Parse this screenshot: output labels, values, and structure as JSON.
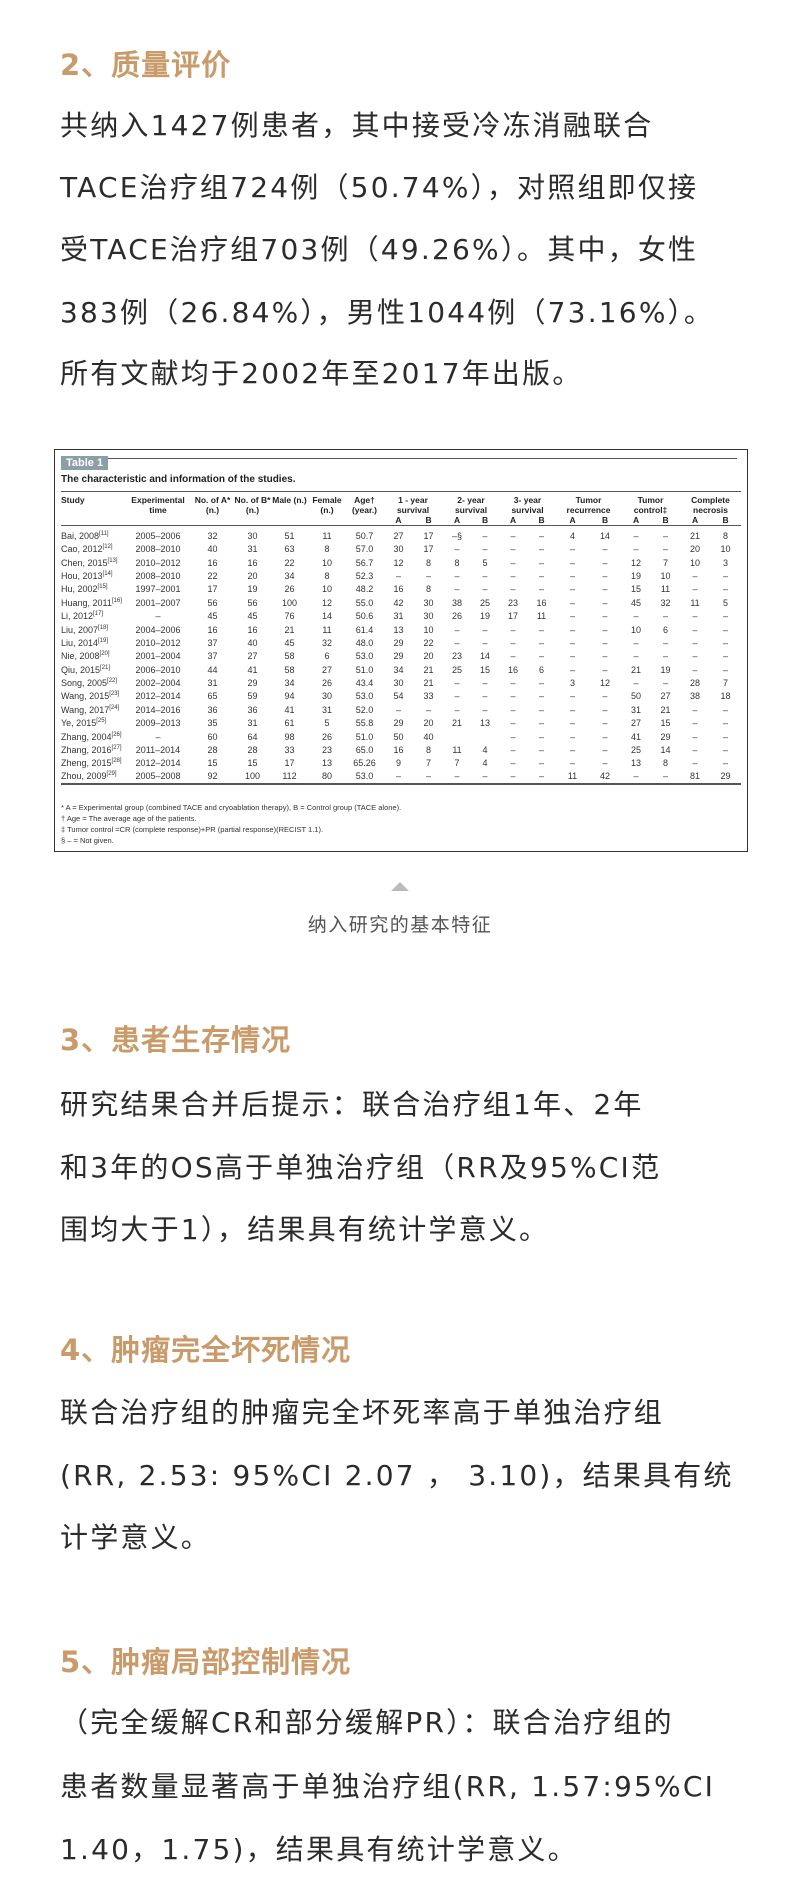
{
  "section2": {
    "heading": "2、质量评价",
    "lines": [
      "共纳入1427例患者，其中接受冷冻消融联合",
      "TACE治疗组724例（50.74%），对照组即仅接",
      "受TACE治疗组703例（49.26%）。其中，女性",
      "383例（26.84%），男性1044例（73.16%）。",
      "所有文献均于2002年至2017年出版。"
    ]
  },
  "table": {
    "label": "Table 1",
    "title": "The characteristic and information of the studies.",
    "headers": [
      "Study",
      "Experimental time",
      "No. of A* (n.)",
      "No. of B* (n.)",
      "Male (n.)",
      "Female (n.)",
      "Age† (year.)",
      "1 - year survival",
      "2- year survival",
      "3- year survival",
      "Tumor recurrence",
      "Tumor control‡",
      "Complete necrosis"
    ],
    "sub": [
      "A",
      "B"
    ],
    "rows": [
      [
        "Bai, 2008",
        "11",
        "2005–2006",
        "32",
        "30",
        "51",
        "11",
        "50.7",
        "27",
        "17",
        "–§",
        "–",
        "–",
        "–",
        "4",
        "14",
        "–",
        "–",
        "21",
        "8"
      ],
      [
        "Cao, 2012",
        "12",
        "2008–2010",
        "40",
        "31",
        "63",
        "8",
        "57.0",
        "30",
        "17",
        "–",
        "–",
        "–",
        "–",
        "–",
        "–",
        "–",
        "–",
        "20",
        "10"
      ],
      [
        "Chen, 2015",
        "13",
        "2010–2012",
        "16",
        "16",
        "22",
        "10",
        "56.7",
        "12",
        "8",
        "8",
        "5",
        "–",
        "–",
        "–",
        "–",
        "12",
        "7",
        "10",
        "3"
      ],
      [
        "Hou, 2013",
        "14",
        "2008–2010",
        "22",
        "20",
        "34",
        "8",
        "52.3",
        "–",
        "–",
        "–",
        "–",
        "–",
        "–",
        "–",
        "–",
        "19",
        "10",
        "–",
        "–"
      ],
      [
        "Hu, 2002",
        "15",
        "1997–2001",
        "17",
        "19",
        "26",
        "10",
        "48.2",
        "16",
        "8",
        "–",
        "–",
        "–",
        "–",
        "–",
        "–",
        "15",
        "11",
        "–",
        "–"
      ],
      [
        "Huang, 2011",
        "16",
        "2001–2007",
        "56",
        "56",
        "100",
        "12",
        "55.0",
        "42",
        "30",
        "38",
        "25",
        "23",
        "16",
        "–",
        "–",
        "45",
        "32",
        "11",
        "5"
      ],
      [
        "Li, 2012",
        "17",
        "–",
        "45",
        "45",
        "76",
        "14",
        "50.6",
        "31",
        "30",
        "26",
        "19",
        "17",
        "11",
        "–",
        "–",
        "–",
        "–",
        "–",
        "–"
      ],
      [
        "Liu, 2007",
        "18",
        "2004–2006",
        "16",
        "16",
        "21",
        "11",
        "61.4",
        "13",
        "10",
        "–",
        "–",
        "–",
        "–",
        "–",
        "–",
        "10",
        "6",
        "–",
        "–"
      ],
      [
        "Liu, 2014",
        "19",
        "2010–2012",
        "37",
        "40",
        "45",
        "32",
        "48.0",
        "29",
        "22",
        "–",
        "–",
        "–",
        "–",
        "–",
        "–",
        "–",
        "–",
        "–",
        "–"
      ],
      [
        "Nie, 2008",
        "20",
        "2001–2004",
        "37",
        "27",
        "58",
        "6",
        "53.0",
        "29",
        "20",
        "23",
        "14",
        "–",
        "–",
        "–",
        "–",
        "–",
        "–",
        "–",
        "–"
      ],
      [
        "Qiu, 2015",
        "21",
        "2006–2010",
        "44",
        "41",
        "58",
        "27",
        "51.0",
        "34",
        "21",
        "25",
        "15",
        "16",
        "6",
        "–",
        "–",
        "21",
        "19",
        "–",
        "–"
      ],
      [
        "Song, 2005",
        "22",
        "2002–2004",
        "31",
        "29",
        "34",
        "26",
        "43.4",
        "30",
        "21",
        "–",
        "–",
        "–",
        "–",
        "3",
        "12",
        "–",
        "–",
        "28",
        "7"
      ],
      [
        "Wang, 2015",
        "23",
        "2012–2014",
        "65",
        "59",
        "94",
        "30",
        "53.0",
        "54",
        "33",
        "–",
        "–",
        "–",
        "–",
        "–",
        "–",
        "50",
        "27",
        "38",
        "18"
      ],
      [
        "Wang, 2017",
        "24",
        "2014–2016",
        "36",
        "36",
        "41",
        "31",
        "52.0",
        "–",
        "–",
        "–",
        "–",
        "–",
        "–",
        "–",
        "–",
        "31",
        "21",
        "–",
        "–"
      ],
      [
        "Ye, 2015",
        "25",
        "2009–2013",
        "35",
        "31",
        "61",
        "5",
        "55.8",
        "29",
        "20",
        "21",
        "13",
        "–",
        "–",
        "–",
        "–",
        "27",
        "15",
        "–",
        "–"
      ],
      [
        "Zhang, 2004",
        "26",
        "–",
        "60",
        "64",
        "98",
        "26",
        "51.0",
        "50",
        "40",
        "",
        "",
        "–",
        "–",
        "–",
        "–",
        "41",
        "29",
        "–",
        "–"
      ],
      [
        "Zhang, 2016",
        "27",
        "2011–2014",
        "28",
        "28",
        "33",
        "23",
        "65.0",
        "16",
        "8",
        "11",
        "4",
        "–",
        "–",
        "–",
        "–",
        "25",
        "14",
        "–",
        "–"
      ],
      [
        "Zheng, 2015",
        "28",
        "2012–2014",
        "15",
        "15",
        "17",
        "13",
        "65.26",
        "9",
        "7",
        "7",
        "4",
        "–",
        "–",
        "–",
        "–",
        "13",
        "8",
        "–",
        "–"
      ],
      [
        "Zhou, 2009",
        "29",
        "2005–2008",
        "92",
        "100",
        "112",
        "80",
        "53.0",
        "–",
        "–",
        "–",
        "–",
        "–",
        "–",
        "11",
        "42",
        "–",
        "–",
        "81",
        "29"
      ]
    ],
    "notes": [
      "* A = Experimental group (combined TACE and cryoablation therapy), B = Control group (TACE alone).",
      "† Age = The average age of the patients.",
      "‡ Tumor control =CR (complete response)+PR (partial response)(RECIST 1.1).",
      "§ – = Not given."
    ]
  },
  "caption": "纳入研究的基本特征",
  "section3": {
    "heading": "3、患者生存情况",
    "lines": [
      "研究结果合并后提示：联合治疗组1年、2年",
      "和3年的OS高于单独治疗组（RR及95%CI范",
      "围均大于1），结果具有统计学意义。"
    ]
  },
  "section4": {
    "heading": "4、肿瘤完全坏死情况",
    "lines": [
      "联合治疗组的肿瘤完全坏死率高于单独治疗组",
      "(RR, 2.53: 95%CI 2.07 ， 3.10)，结果具有统",
      "计学意义。"
    ]
  },
  "section5": {
    "heading": "5、肿瘤局部控制情况",
    "lines": [
      "（完全缓解CR和部分缓解PR）：联合治疗组的",
      "患者数量显著高于单独治疗组(RR, 1.57:95%CI",
      "1.40，1.75)，结果具有统计学意义。"
    ]
  },
  "colors": {
    "heading": "#c99a6a",
    "text": "#2b2b2b"
  }
}
